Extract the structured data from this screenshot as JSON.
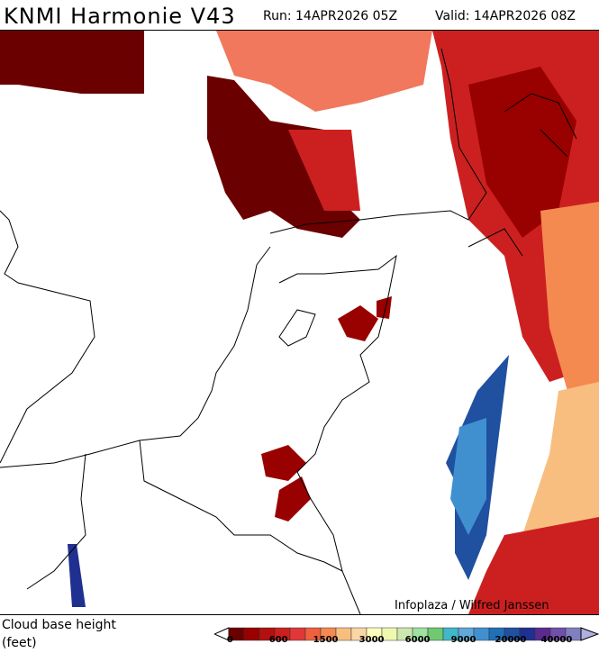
{
  "header": {
    "title": "KNMI Harmonie V43",
    "run": "Run: 14APR2026 05Z",
    "valid": "Valid: 14APR2026 08Z"
  },
  "map": {
    "credit": "Infoplaza / Wilfred Janssen"
  },
  "legend": {
    "label_line1": "Cloud base height",
    "label_line2": "(feet)",
    "colors": [
      "#6b0000",
      "#990000",
      "#b31010",
      "#cc2020",
      "#e03838",
      "#ee6040",
      "#f48a50",
      "#f8be80",
      "#fad6a6",
      "#ffffc0",
      "#eef8b0",
      "#cce8b0",
      "#a0e0a0",
      "#70c870",
      "#40b8c8",
      "#60a8d8",
      "#4090d0",
      "#2070b8",
      "#2050a0",
      "#203090",
      "#5a2a90",
      "#7050a8",
      "#8080c0"
    ],
    "under_color": "#ffffff",
    "over_color": "#b0b0e0",
    "ticks": [
      {
        "i": 0,
        "label": "0"
      },
      {
        "i": 3,
        "label": "600"
      },
      {
        "i": 6,
        "label": "1500"
      },
      {
        "i": 9,
        "label": "3000"
      },
      {
        "i": 12,
        "label": "6000"
      },
      {
        "i": 15,
        "label": "9000"
      },
      {
        "i": 18,
        "label": "20000"
      },
      {
        "i": 21,
        "label": "40000"
      }
    ]
  }
}
